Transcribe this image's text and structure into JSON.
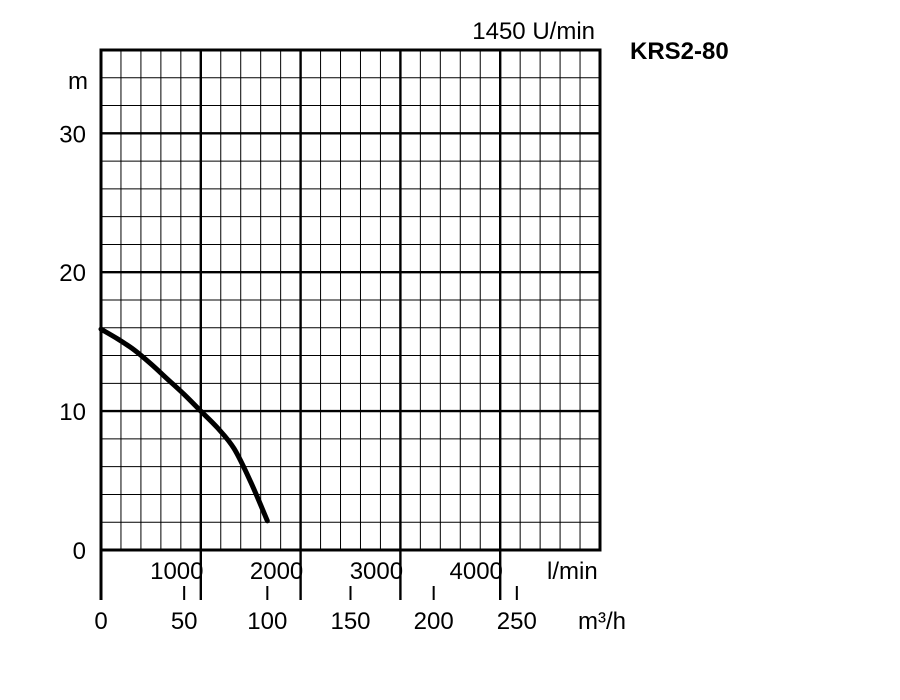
{
  "chart_data": {
    "type": "line",
    "title": "KRS2-80",
    "subtitle": "1450 U/min",
    "ylabel": "m",
    "xlabel_primary": "l/min",
    "xlabel_secondary": "m³/h",
    "ylim": [
      0,
      36
    ],
    "y_ticks": [
      "0",
      "10",
      "20",
      "30"
    ],
    "xlim_lpm": [
      0,
      5000
    ],
    "x_ticks_lpm": [
      "1000",
      "2000",
      "3000",
      "4000"
    ],
    "xlim_m3h": [
      0,
      300
    ],
    "x_ticks_m3h": [
      "0",
      "50",
      "100",
      "150",
      "200",
      "250"
    ],
    "grid": true,
    "line_color": "#000000",
    "series": [
      {
        "x_m3h": [
          0,
          10,
          20,
          30,
          40,
          50,
          60,
          70,
          80,
          90,
          100
        ],
        "y": [
          15.9,
          15.2,
          14.4,
          13.4,
          12.3,
          11.2,
          10.0,
          8.8,
          7.3,
          4.9,
          2.1
        ]
      }
    ]
  }
}
